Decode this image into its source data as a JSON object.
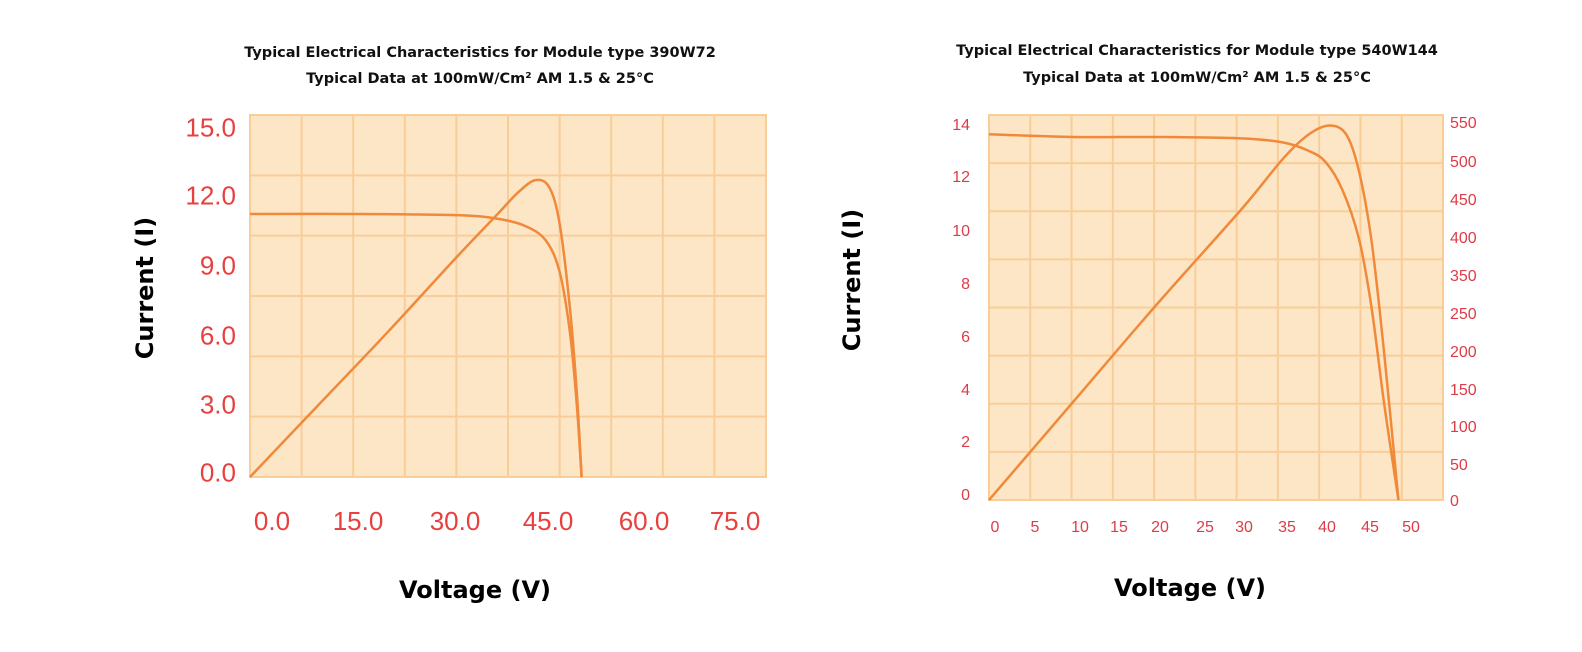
{
  "colors": {
    "plot_bg": "#fde6c6",
    "grid": "#f8cd98",
    "curve": "#f0893a",
    "tick_left": "#e8403f",
    "tick_right": "#dc3c48"
  },
  "chart_data": [
    {
      "type": "line",
      "title": "Typical Electrical Characteristics for Module type  390W72",
      "subtitle": "Typical Data at 100mW/Cm² AM 1.5 & 25°C",
      "xlabel": "Voltage (V)",
      "ylabel": "Current (I)",
      "xlim": [
        0,
        75
      ],
      "ylim": [
        0,
        15
      ],
      "x_ticks": [
        "0.0",
        "15.0",
        "30.0",
        "45.0",
        "60.0",
        "75.0"
      ],
      "y_ticks": [
        "0.0",
        "3.0",
        "6.0",
        "9.0",
        "12.0",
        "15.0"
      ],
      "grid": true,
      "series": [
        {
          "x": [
            0,
            15,
            30,
            36,
            40,
            43,
            45,
            46.5,
            47.5,
            48.2
          ],
          "y": [
            10.9,
            10.9,
            10.85,
            10.7,
            10.4,
            9.8,
            8.5,
            6.0,
            3.0,
            0
          ]
        },
        {
          "x": [
            0,
            10,
            20,
            30,
            36,
            39,
            41.5,
            43.5,
            45,
            46.5,
            47.5,
            48.2
          ],
          "y": [
            0,
            3.0,
            6.0,
            9.1,
            10.9,
            11.8,
            12.3,
            12.0,
            10.5,
            7.0,
            3.5,
            0
          ]
        }
      ]
    },
    {
      "type": "line",
      "title": "Typical Electrical Characteristics for Module type 540W144",
      "subtitle": "Typical Data at 100mW/Cm² AM 1.5 & 25°C",
      "xlabel": "Voltage (V)",
      "ylabel": "Current (I)",
      "xlim": [
        0,
        54
      ],
      "ylim": [
        0,
        14
      ],
      "y2lim": [
        0,
        550
      ],
      "x_ticks": [
        "0",
        "5",
        "10",
        "15",
        "20",
        "25",
        "30",
        "35",
        "40",
        "45",
        "50"
      ],
      "y_ticks": [
        "0",
        "2",
        "4",
        "6",
        "8",
        "10",
        "12",
        "14"
      ],
      "y2_ticks": [
        "0",
        "50",
        "100",
        "150",
        "200",
        "250",
        "350",
        "400",
        "450",
        "500",
        "550"
      ],
      "grid": true,
      "series": [
        {
          "axis": "left",
          "x": [
            0,
            10,
            20,
            30,
            35,
            38,
            40,
            42,
            44,
            45.5,
            47,
            48.7
          ],
          "y": [
            13.3,
            13.2,
            13.2,
            13.15,
            13.0,
            12.7,
            12.3,
            11.3,
            9.5,
            7.0,
            3.5,
            0
          ]
        },
        {
          "axis": "right",
          "x": [
            0,
            10,
            20,
            30,
            35,
            38,
            40.5,
            42.5,
            44,
            45.5,
            47,
            48.7
          ],
          "y": [
            0,
            140,
            280,
            415,
            488,
            522,
            535,
            522,
            470,
            370,
            210,
            0
          ]
        }
      ]
    }
  ]
}
